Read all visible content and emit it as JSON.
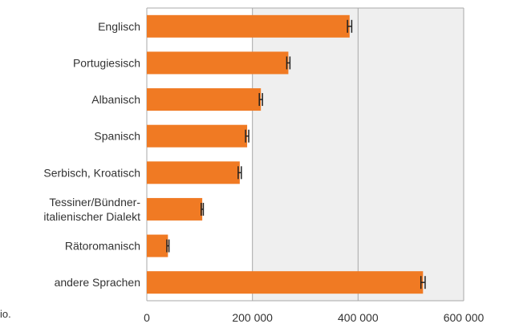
{
  "chart_data": {
    "type": "bar",
    "orientation": "horizontal",
    "categories": [
      "Englisch",
      "Portugiesisch",
      "Albanisch",
      "Spanisch",
      "Serbisch, Kroatisch",
      "Tessiner/Bündner-\nitalienischer Dialekt",
      "Rätoromanisch",
      "andere Sprachen"
    ],
    "values": [
      384000,
      268000,
      216000,
      190000,
      176000,
      105000,
      40000,
      523000
    ],
    "error_margin": [
      4000,
      3000,
      3000,
      3000,
      3000,
      2000,
      2000,
      4000
    ],
    "xlim": [
      0,
      600000
    ],
    "xticks": [
      "0",
      "200 000",
      "400 000",
      "600 000"
    ],
    "xtick_values": [
      0,
      200000,
      400000,
      600000
    ],
    "grid": true,
    "colors": {
      "bar": "#f07a23",
      "plot_background_shaded": "#efefef",
      "grid": "#a8a8a8",
      "error_bar": "#222222"
    }
  },
  "edge_text": "io."
}
